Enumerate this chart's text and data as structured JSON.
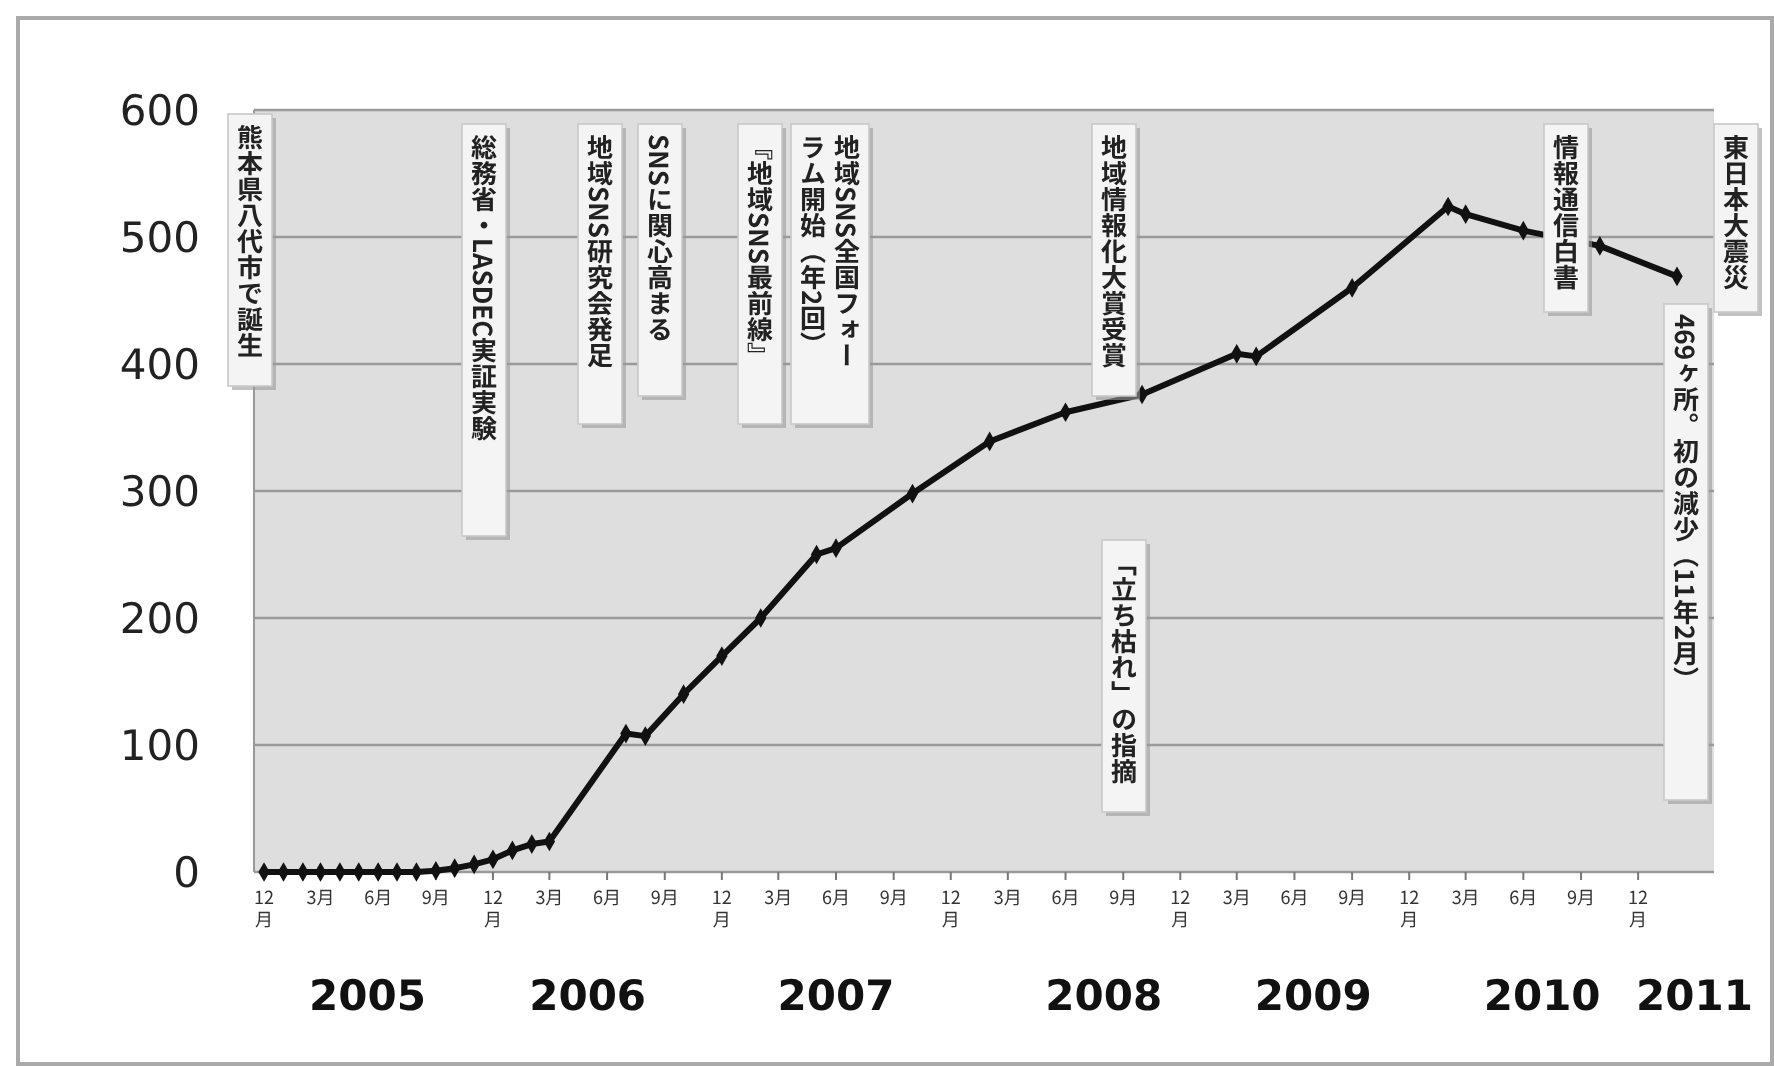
{
  "chart_data": {
    "type": "line",
    "x": [
      "2004-12",
      "2005-01",
      "2005-02",
      "2005-03",
      "2005-04",
      "2005-05",
      "2005-06",
      "2005-07",
      "2005-08",
      "2005-09",
      "2005-10",
      "2005-11",
      "2005-12",
      "2006-01",
      "2006-02",
      "2006-03",
      "2006-07",
      "2006-08",
      "2006-10",
      "2006-12",
      "2007-02",
      "2007-05",
      "2007-06",
      "2007-10",
      "2008-02",
      "2008-06",
      "2008-10",
      "2009-03",
      "2009-04",
      "2009-09",
      "2010-02",
      "2010-03",
      "2010-06",
      "2010-10",
      "2011-02"
    ],
    "series": [
      {
        "color": "#111111",
        "values": [
          0,
          0,
          0,
          0,
          0,
          0,
          0,
          0,
          0,
          1,
          3,
          6,
          10,
          17,
          22,
          24,
          109,
          107,
          140,
          170,
          200,
          250,
          255,
          298,
          339,
          362,
          376,
          408,
          406,
          460,
          524,
          518,
          505,
          493,
          469
        ]
      }
    ],
    "xlim": [
      "2004-11-15",
      "2011-04-01"
    ],
    "xticks": [
      {
        "value": "2004-12",
        "label": "12月"
      },
      {
        "value": "2005-03",
        "label": "3月"
      },
      {
        "value": "2005-06",
        "label": "6月"
      },
      {
        "value": "2005-09",
        "label": "9月"
      },
      {
        "value": "2005-12",
        "label": "12月"
      },
      {
        "value": "2006-03",
        "label": "3月"
      },
      {
        "value": "2006-06",
        "label": "6月"
      },
      {
        "value": "2006-09",
        "label": "9月"
      },
      {
        "value": "2006-12",
        "label": "12月"
      },
      {
        "value": "2007-03",
        "label": "3月"
      },
      {
        "value": "2007-06",
        "label": "6月"
      },
      {
        "value": "2007-09",
        "label": "9月"
      },
      {
        "value": "2007-12",
        "label": "12月"
      },
      {
        "value": "2008-03",
        "label": "3月"
      },
      {
        "value": "2008-06",
        "label": "6月"
      },
      {
        "value": "2008-09",
        "label": "9月"
      },
      {
        "value": "2008-12",
        "label": "12月"
      },
      {
        "value": "2009-03",
        "label": "3月"
      },
      {
        "value": "2009-06",
        "label": "6月"
      },
      {
        "value": "2009-09",
        "label": "9月"
      },
      {
        "value": "2009-12",
        "label": "12月"
      },
      {
        "value": "2010-03",
        "label": "3月"
      },
      {
        "value": "2010-06",
        "label": "6月"
      },
      {
        "value": "2010-09",
        "label": "9月"
      },
      {
        "value": "2010-12",
        "label": "12月"
      }
    ],
    "x2lim": [
      "2004-11-15",
      "2011-04-01"
    ],
    "x2ticks": [
      {
        "value": "2005-05-15",
        "label": "2005"
      },
      {
        "value": "2006-05",
        "label": "2006"
      },
      {
        "value": "2007-06",
        "label": "2007"
      },
      {
        "value": "2008-08",
        "label": "2008"
      },
      {
        "value": "2009-07",
        "label": "2009"
      },
      {
        "value": "2010-07",
        "label": "2010"
      },
      {
        "value": "2011-03",
        "label": "2011"
      }
    ],
    "ylim": [
      0,
      600
    ],
    "yticks": [
      0,
      100,
      200,
      300,
      400,
      500,
      600
    ],
    "grid": "y",
    "marker": "diamond",
    "line_style": "solid",
    "annotations": [
      "熊本県八代市で誕生",
      "総務省・LASDEC実証実験",
      "地域SNS研究会発足",
      "SNSに関心高まる",
      "『地域SNS最前線』",
      "地域SNS全国フォーラム開始（年2回）",
      "地域情報化大賞受賞",
      "「立ち枯れ」の指摘",
      "情報通信白書",
      "469ヶ所。初の減少（11年2月）",
      "東日本大震災"
    ]
  }
}
